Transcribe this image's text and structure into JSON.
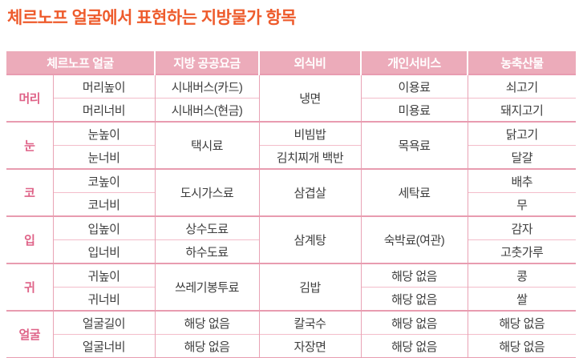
{
  "title": "체르노프 얼굴에서 표현하는 지방물가 항목",
  "colors": {
    "title_text": "#ee5b2c",
    "header_background": "#ecabba",
    "header_text": "#ffffff",
    "group_label_text": "#df6287",
    "body_text": "#3e3e3e",
    "border_strong": "#e89cb0",
    "border_light": "#f3bdca"
  },
  "table": {
    "headers": {
      "face": "체르노프 얼굴",
      "public_fees": "지방 공공요금",
      "dining": "외식비",
      "personal_service": "개인서비스",
      "agri_products": "농축산물"
    },
    "groups": [
      {
        "label": "머리",
        "feature_top": "머리높이",
        "feature_bottom": "머리너비",
        "public_top": "시내버스(카드)",
        "public_bottom": "시내버스(현금)",
        "dining": "냉면",
        "personal_top": "이용료",
        "personal_bottom": "미용료",
        "agri_top": "쇠고기",
        "agri_bottom": "돼지고기"
      },
      {
        "label": "눈",
        "feature_top": "눈높이",
        "feature_bottom": "눈너비",
        "public": "택시료",
        "dining_top": "비빔밥",
        "dining_bottom": "김치찌개 백반",
        "personal": "목욕료",
        "agri_top": "닭고기",
        "agri_bottom": "달걀"
      },
      {
        "label": "코",
        "feature_top": "코높이",
        "feature_bottom": "코너비",
        "public": "도시가스료",
        "dining": "삼겹살",
        "personal": "세탁료",
        "agri_top": "배추",
        "agri_bottom": "무"
      },
      {
        "label": "입",
        "feature_top": "입높이",
        "feature_bottom": "입너비",
        "public_top": "상수도료",
        "public_bottom": "하수도료",
        "dining": "삼계탕",
        "personal": "숙박료(여관)",
        "agri_top": "감자",
        "agri_bottom": "고춧가루"
      },
      {
        "label": "귀",
        "feature_top": "귀높이",
        "feature_bottom": "귀너비",
        "public": "쓰레기봉투료",
        "dining": "김밥",
        "personal_top": "해당 없음",
        "personal_bottom": "해당 없음",
        "agri_top": "콩",
        "agri_bottom": "쌀"
      },
      {
        "label": "얼굴",
        "feature_top": "얼굴길이",
        "feature_bottom": "얼굴너비",
        "public_top": "해당 없음",
        "public_bottom": "해당 없음",
        "dining_top": "칼국수",
        "dining_bottom": "자장면",
        "personal_top": "해당 없음",
        "personal_bottom": "해당 없음",
        "agri_top": "해당 없음",
        "agri_bottom": "해당 없음"
      }
    ]
  }
}
